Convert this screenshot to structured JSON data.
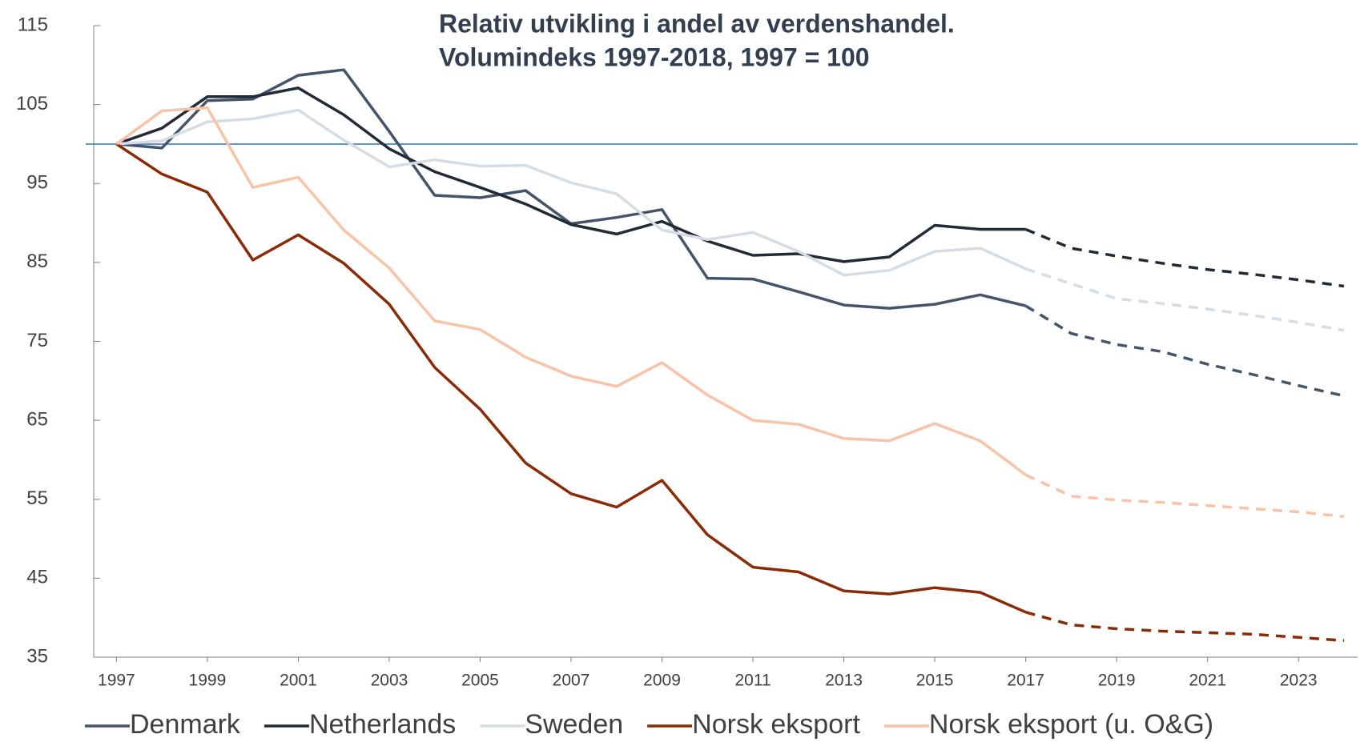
{
  "chart_data": {
    "type": "line",
    "title": "Relativ utvikling i andel av verdenshandel.",
    "subtitle": "Volumindeks 1997-2018, 1997 = 100",
    "x": [
      1997,
      1998,
      1999,
      2000,
      2001,
      2002,
      2003,
      2004,
      2005,
      2006,
      2007,
      2008,
      2009,
      2010,
      2011,
      2012,
      2013,
      2014,
      2015,
      2016,
      2017,
      2018,
      2019,
      2020,
      2021,
      2022,
      2023,
      2024
    ],
    "series": [
      {
        "name": "Denmark",
        "color": "#44546a",
        "values": [
          100,
          99.5,
          105.5,
          105.7,
          108.7,
          109.4,
          101.6,
          93.5,
          93.2,
          94.1,
          89.9,
          90.7,
          91.7,
          83.0,
          82.9,
          81.3,
          79.6,
          79.2,
          79.7,
          80.9,
          79.5,
          76.0,
          74.6,
          73.7,
          72.1,
          70.8,
          69.4,
          68.1
        ]
      },
      {
        "name": "Netherlands",
        "color": "#222a35",
        "values": [
          100,
          102,
          106,
          106,
          107.1,
          103.7,
          99.4,
          96.5,
          94.5,
          92.4,
          89.8,
          88.6,
          90.2,
          87.7,
          85.9,
          86.1,
          85.1,
          85.7,
          89.7,
          89.2,
          89.2,
          86.8,
          85.8,
          84.9,
          84.1,
          83.5,
          82.8,
          82.0
        ]
      },
      {
        "name": "Sweden",
        "color": "#d6dce4",
        "values": [
          100,
          100.4,
          102.8,
          103.2,
          104.3,
          100.5,
          97.1,
          98.0,
          97.2,
          97.3,
          95.1,
          93.7,
          89.1,
          87.9,
          88.8,
          86.4,
          83.4,
          84.0,
          86.4,
          86.8,
          84.2,
          82.3,
          80.4,
          79.8,
          79.1,
          78.3,
          77.4,
          76.4
        ]
      },
      {
        "name": "Norsk eksport",
        "color": "#8b2a06",
        "values": [
          100,
          96.2,
          93.9,
          85.3,
          88.5,
          84.9,
          79.7,
          71.7,
          66.4,
          59.6,
          55.7,
          54.0,
          57.4,
          50.5,
          46.4,
          45.8,
          43.4,
          43.0,
          43.8,
          43.2,
          40.7,
          39.1,
          38.6,
          38.3,
          38.1,
          37.9,
          37.5,
          37.1
        ]
      },
      {
        "name": "Norsk eksport (u. O&G)",
        "color": "#f8c3a6",
        "values": [
          100,
          104.2,
          104.6,
          94.5,
          95.8,
          89.1,
          84.3,
          77.6,
          76.5,
          73.0,
          70.6,
          69.3,
          72.3,
          68.2,
          65.0,
          64.5,
          62.7,
          62.4,
          64.6,
          62.4,
          58.1,
          55.4,
          54.9,
          54.6,
          54.2,
          53.8,
          53.4,
          52.8
        ]
      }
    ],
    "dashed_from_x": 2017,
    "reference_line": {
      "value": 100,
      "color": "#2e75b6"
    },
    "xlim": [
      1996.5,
      2024.3
    ],
    "xticks": [
      1997,
      1999,
      2001,
      2003,
      2005,
      2007,
      2009,
      2011,
      2013,
      2015,
      2017,
      2019,
      2021,
      2023
    ],
    "ylim": [
      35,
      115
    ],
    "yticks": [
      35,
      45,
      55,
      65,
      75,
      85,
      95,
      105,
      115
    ],
    "grid": false,
    "legend": "bottom"
  }
}
